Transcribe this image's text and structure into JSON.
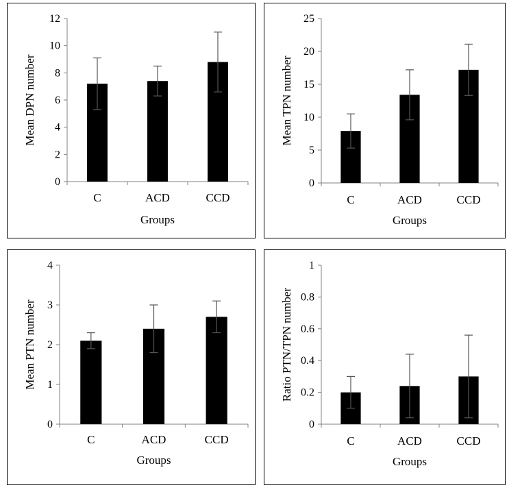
{
  "chart_data": [
    {
      "type": "bar",
      "categories": [
        "C",
        "ACD",
        "CCD"
      ],
      "values": [
        7.2,
        7.4,
        8.8
      ],
      "errors": [
        1.9,
        1.1,
        2.2
      ],
      "xlabel": "Groups",
      "ylabel": "Mean DPN number",
      "ylim": [
        0,
        12
      ],
      "yticks": [
        0,
        2,
        4,
        6,
        8,
        10,
        12
      ],
      "ytick_labels": [
        "0",
        "2",
        "4",
        "6",
        "8",
        "10",
        "12"
      ],
      "grid": false,
      "bar_color": "#000000"
    },
    {
      "type": "bar",
      "categories": [
        "C",
        "ACD",
        "CCD"
      ],
      "values": [
        7.9,
        13.4,
        17.2
      ],
      "errors": [
        2.6,
        3.8,
        3.9
      ],
      "xlabel": "Groups",
      "ylabel": "Mean TPN number",
      "ylim": [
        0,
        25
      ],
      "yticks": [
        0,
        5,
        10,
        15,
        20,
        25
      ],
      "ytick_labels": [
        "0",
        "5",
        "10",
        "15",
        "20",
        "25"
      ],
      "grid": false,
      "bar_color": "#000000"
    },
    {
      "type": "bar",
      "categories": [
        "C",
        "ACD",
        "CCD"
      ],
      "values": [
        2.1,
        2.4,
        2.7
      ],
      "errors": [
        0.2,
        0.6,
        0.4
      ],
      "xlabel": "Groups",
      "ylabel": "Mean PTN number",
      "ylim": [
        0,
        4
      ],
      "yticks": [
        0,
        1,
        2,
        3,
        4
      ],
      "ytick_labels": [
        "0",
        "1",
        "2",
        "3",
        "4"
      ],
      "grid": false,
      "bar_color": "#000000"
    },
    {
      "type": "bar",
      "categories": [
        "C",
        "ACD",
        "CCD"
      ],
      "values": [
        0.2,
        0.24,
        0.3
      ],
      "errors": [
        0.1,
        0.2,
        0.26
      ],
      "xlabel": "Groups",
      "ylabel": "Ratio PTN/TPN number",
      "ylim": [
        0,
        1
      ],
      "yticks": [
        0,
        0.2,
        0.4,
        0.6,
        0.8,
        1
      ],
      "ytick_labels": [
        "0",
        "0.2",
        "0.4",
        "0.6",
        "0.8",
        "1"
      ],
      "grid": false,
      "bar_color": "#000000"
    }
  ]
}
